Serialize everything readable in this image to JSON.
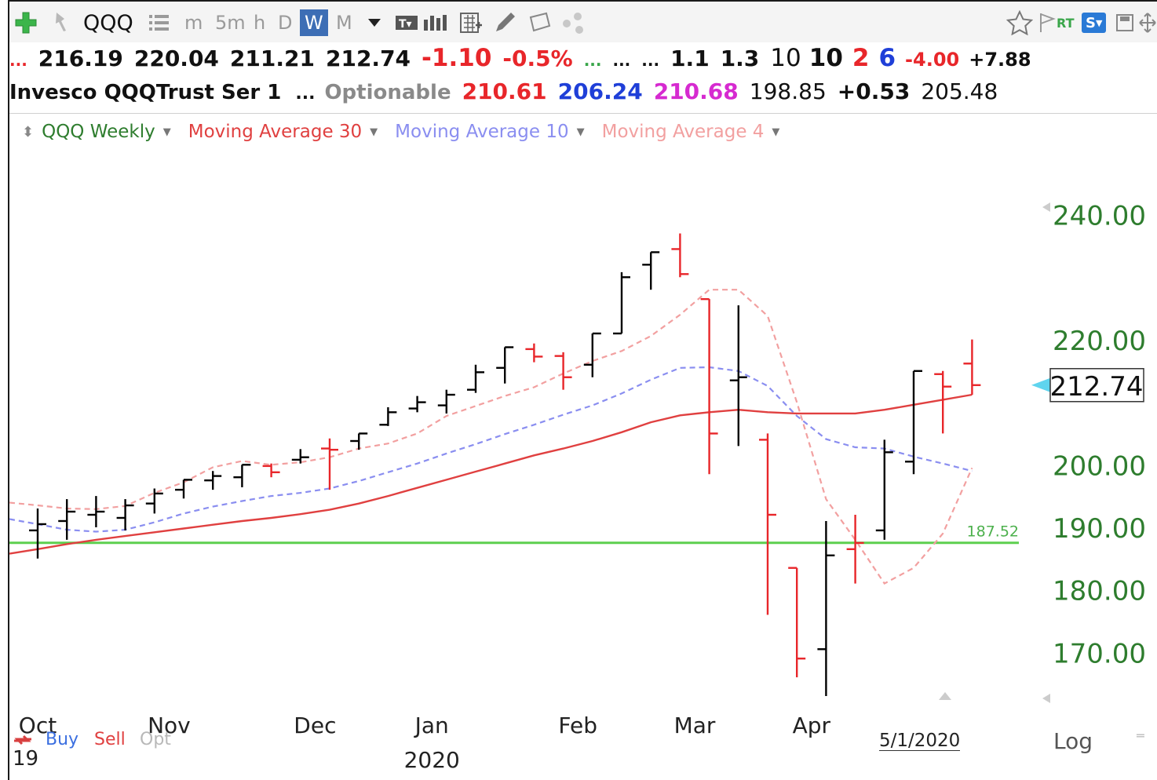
{
  "toolbar": {
    "symbol": "QQQ",
    "timeframes": [
      "m",
      "5m",
      "h",
      "D",
      "W",
      "M"
    ],
    "active_timeframe": "W",
    "rt_label": "RT",
    "s_label": "S"
  },
  "quote": {
    "row1": {
      "dots1": "...",
      "open": "216.19",
      "high": "220.04",
      "low": "211.21",
      "close": "212.74",
      "change": "-1.10",
      "change_pct": "-0.5%",
      "dots2": "...",
      "dots3": "...",
      "dots4": "...",
      "v1": "1.1",
      "v2": "1.3",
      "v3": "10",
      "v4": "10",
      "v5": "2",
      "v6": "6",
      "v7": "-4.00",
      "v8": "+7.88"
    },
    "row2": {
      "name": "Invesco QQQTrust Ser 1",
      "dots": "...",
      "optionable": "Optionable",
      "p1": "210.61",
      "p2": "206.24",
      "p3": "210.68",
      "p4": "198.85",
      "p5": "+0.53",
      "p6": "205.48"
    }
  },
  "legend": {
    "main": "QQQ Weekly",
    "ma30": "Moving Average 30",
    "ma10": "Moving Average 10",
    "ma4": "Moving Average 4"
  },
  "colors": {
    "up_bar": "#000000",
    "down_bar": "#e8262a",
    "ma30": "#e04040",
    "ma10": "#8a8ef0",
    "ma4": "#f2a0a0",
    "hline": "#5dcf4f",
    "axis_text": "#2e7d2e"
  },
  "bottom": {
    "buy": "Buy",
    "sell": "Sell",
    "opt": "Opt",
    "date": "5/1/2020",
    "log": "Log",
    "year_left": "19"
  },
  "chart_data": {
    "type": "ohlc",
    "ylim": [
      162,
      252
    ],
    "y_ticks": [
      170,
      180,
      190,
      200,
      220,
      240
    ],
    "y_tick_labels": [
      "170.00",
      "180.00",
      "190.00",
      "200.00",
      "220.00",
      "240.00"
    ],
    "last_price_label": "212.74",
    "last_price": 212.74,
    "hline": {
      "value": 187.52,
      "label": "187.52"
    },
    "x_labels": [
      "Oct",
      "Nov",
      "Dec",
      "Jan",
      "Feb",
      "Mar",
      "Apr"
    ],
    "x_label_index": [
      0,
      4.5,
      9.5,
      13.5,
      18.5,
      22.5,
      26.5
    ],
    "year_label": "2020",
    "year_label_index": 13.5,
    "series": [
      {
        "name": "QQQ Weekly",
        "ohlc": [
          [
            189.5,
            193.0,
            185.0,
            190.5
          ],
          [
            191.0,
            194.5,
            188.0,
            192.5
          ],
          [
            192.0,
            195.0,
            190.0,
            192.5
          ],
          [
            191.5,
            194.5,
            189.5,
            193.5
          ],
          [
            193.8,
            196.2,
            192.2,
            195.4
          ],
          [
            196.0,
            197.6,
            194.6,
            197.6
          ],
          [
            197.5,
            199.0,
            196.0,
            198.2
          ],
          [
            198.0,
            200.0,
            196.4,
            200.0
          ],
          [
            199.8,
            200.2,
            198.0,
            198.8
          ],
          [
            200.8,
            202.5,
            200.2,
            201.2
          ],
          [
            202.6,
            204.2,
            196.0,
            202.4
          ],
          [
            203.8,
            205.0,
            202.4,
            205.0
          ],
          [
            206.4,
            209.2,
            206.2,
            208.4
          ],
          [
            209.0,
            211.0,
            208.4,
            210.0
          ],
          [
            209.5,
            212.0,
            208.2,
            211.2
          ],
          [
            212.0,
            216.0,
            211.5,
            214.8
          ],
          [
            215.5,
            218.8,
            213.0,
            218.8
          ],
          [
            218.5,
            219.4,
            216.4,
            217.3
          ],
          [
            217.4,
            218.0,
            212.0,
            214.0
          ],
          [
            216.0,
            221.0,
            214.0,
            221.0
          ],
          [
            221.0,
            230.8,
            221.0,
            230.0
          ],
          [
            232.0,
            234.0,
            228.0,
            234.0
          ],
          [
            234.5,
            237.0,
            230.0,
            230.5
          ],
          [
            226.5,
            226.5,
            198.5,
            205.0
          ],
          [
            213.5,
            225.5,
            203.0,
            214.0
          ],
          [
            204.0,
            205.0,
            176.0,
            192.0
          ],
          [
            183.5,
            183.5,
            166.0,
            169.0
          ],
          [
            170.5,
            191.0,
            163.0,
            185.5
          ],
          [
            186.5,
            192.0,
            181.0,
            187.5
          ],
          [
            189.5,
            204.0,
            188.0,
            202.0
          ],
          [
            200.5,
            215.0,
            198.5,
            215.0
          ],
          [
            214.5,
            215.0,
            205.0,
            212.5
          ],
          [
            216.19,
            220.04,
            211.21,
            212.74
          ]
        ],
        "up": [
          true,
          true,
          true,
          true,
          true,
          true,
          true,
          true,
          false,
          true,
          false,
          true,
          true,
          true,
          true,
          true,
          true,
          false,
          false,
          true,
          true,
          true,
          false,
          false,
          true,
          false,
          false,
          true,
          false,
          true,
          true,
          false,
          false
        ]
      },
      {
        "name": "Moving Average 30",
        "values": [
          186.5,
          187.3,
          188.0,
          188.6,
          189.2,
          189.8,
          190.4,
          191.0,
          191.5,
          192.1,
          192.8,
          193.8,
          195.0,
          196.3,
          197.6,
          198.9,
          200.2,
          201.5,
          202.6,
          203.8,
          205.2,
          206.8,
          207.9,
          208.4,
          208.8,
          208.4,
          208.2,
          208.2,
          208.2,
          208.8,
          209.6,
          210.4,
          211.2
        ]
      },
      {
        "name": "Moving Average 10",
        "values": [
          190.5,
          189.6,
          189.3,
          189.6,
          190.8,
          192.2,
          193.3,
          194.2,
          195.0,
          195.5,
          196.2,
          197.4,
          198.8,
          200.2,
          201.8,
          203.3,
          204.9,
          206.4,
          208.0,
          209.5,
          211.4,
          213.6,
          215.5,
          215.6,
          215.0,
          212.6,
          207.8,
          204.1,
          202.8,
          202.6,
          201.3,
          200.2,
          199.0
        ]
      },
      {
        "name": "Moving Average 4",
        "values": [
          193.5,
          193.0,
          192.9,
          193.4,
          195.5,
          197.2,
          199.6,
          200.6,
          200.0,
          200.4,
          201.2,
          202.6,
          203.4,
          205.0,
          207.8,
          209.4,
          211.0,
          212.4,
          214.6,
          216.6,
          218.2,
          220.6,
          224.0,
          228.0,
          228.0,
          223.8,
          210.0,
          194.5,
          188.0,
          181.0,
          183.5,
          189.0,
          199.5
        ]
      }
    ]
  }
}
